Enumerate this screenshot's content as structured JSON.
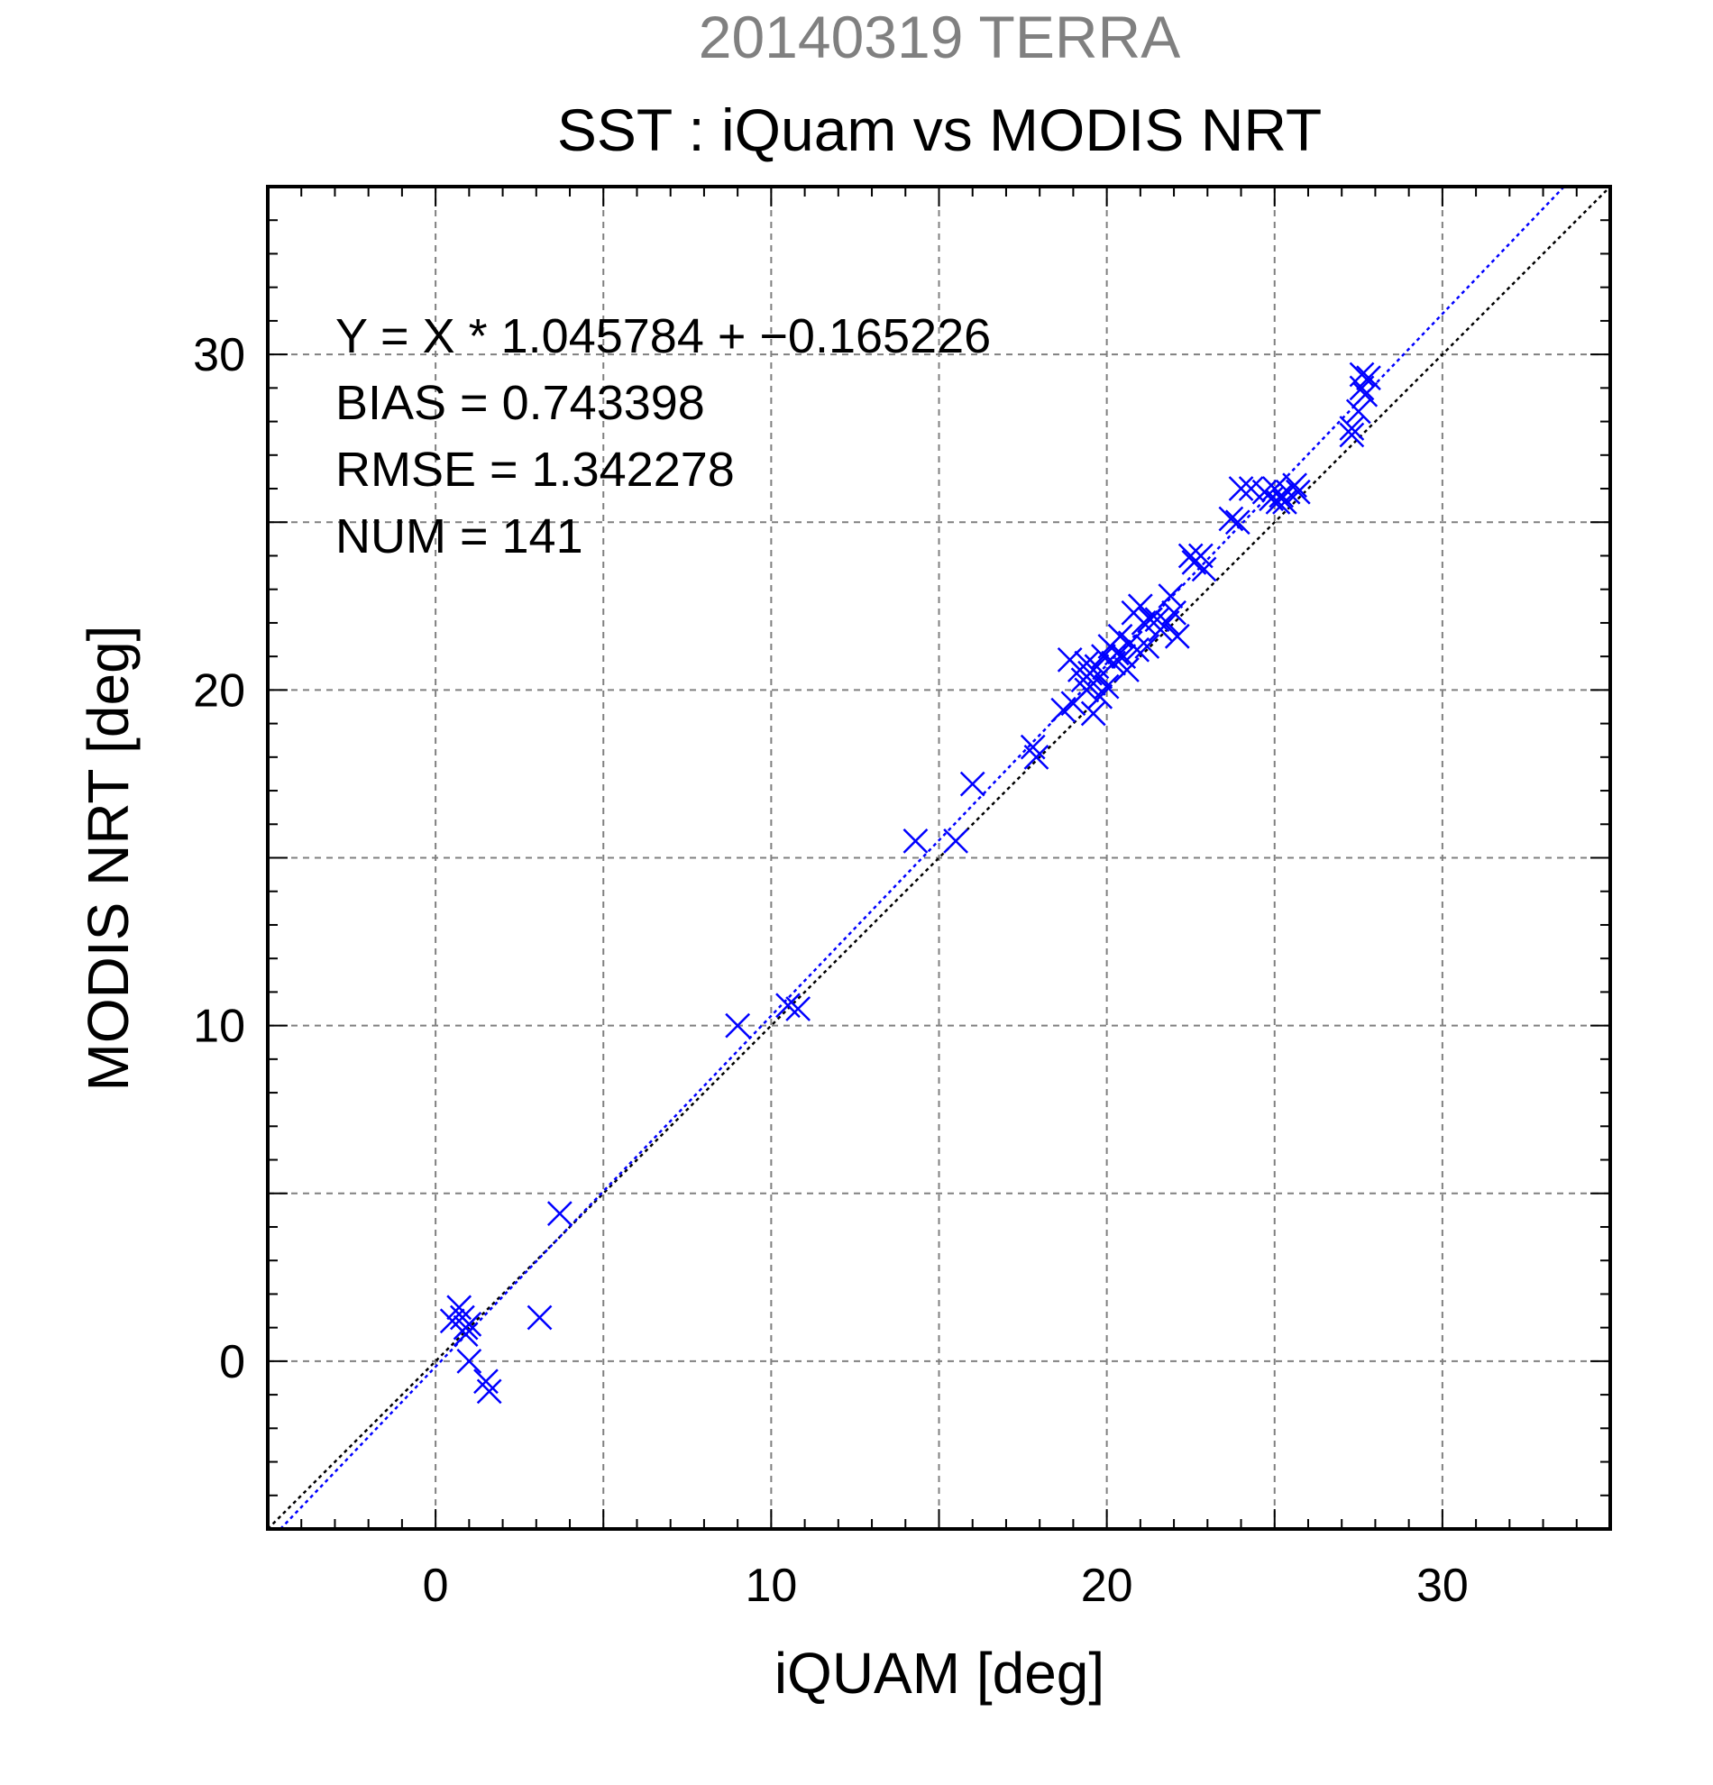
{
  "chart_data": {
    "type": "scatter",
    "subtitle": "20140319 TERRA",
    "title": "SST : iQuam vs MODIS NRT",
    "xlabel": "iQUAM [deg]",
    "ylabel": "MODIS NRT [deg]",
    "xlim": [
      -5,
      35
    ],
    "ylim": [
      -5,
      35
    ],
    "xticks": [
      0,
      10,
      20,
      30
    ],
    "yticks": [
      0,
      10,
      20,
      30
    ],
    "grid": true,
    "stats": [
      "Y = X * 1.045784 + −0.165226",
      "BIAS = 0.743398",
      "RMSE = 1.342278",
      "NUM = 141"
    ],
    "reference_line": {
      "name": "1:1",
      "slope": 1,
      "intercept": 0,
      "color": "#000000"
    },
    "fit_line": {
      "slope": 1.045784,
      "intercept": -0.165226,
      "color": "#0000ff"
    },
    "marker_color": "#0000ff",
    "points": [
      {
        "x": 0.5,
        "y": 1.2
      },
      {
        "x": 0.7,
        "y": 1.6
      },
      {
        "x": 0.8,
        "y": 1.3
      },
      {
        "x": 0.9,
        "y": 1.0
      },
      {
        "x": 0.9,
        "y": 0.8
      },
      {
        "x": 1.0,
        "y": 1.1
      },
      {
        "x": 1.0,
        "y": 0.0
      },
      {
        "x": 1.5,
        "y": -0.6
      },
      {
        "x": 1.6,
        "y": -0.9
      },
      {
        "x": 3.1,
        "y": 1.3
      },
      {
        "x": 3.7,
        "y": 4.4
      },
      {
        "x": 9.0,
        "y": 10.0
      },
      {
        "x": 10.5,
        "y": 10.6
      },
      {
        "x": 10.8,
        "y": 10.5
      },
      {
        "x": 14.3,
        "y": 15.5
      },
      {
        "x": 15.5,
        "y": 15.5
      },
      {
        "x": 16.0,
        "y": 17.2
      },
      {
        "x": 17.8,
        "y": 18.3
      },
      {
        "x": 17.9,
        "y": 18.0
      },
      {
        "x": 18.7,
        "y": 19.4
      },
      {
        "x": 18.9,
        "y": 20.9
      },
      {
        "x": 19.0,
        "y": 19.6
      },
      {
        "x": 19.2,
        "y": 20.6
      },
      {
        "x": 19.3,
        "y": 20.3
      },
      {
        "x": 19.4,
        "y": 20.8
      },
      {
        "x": 19.4,
        "y": 20.0
      },
      {
        "x": 19.5,
        "y": 20.5
      },
      {
        "x": 19.6,
        "y": 19.3
      },
      {
        "x": 19.6,
        "y": 20.2
      },
      {
        "x": 19.7,
        "y": 20.7
      },
      {
        "x": 19.8,
        "y": 19.8
      },
      {
        "x": 19.8,
        "y": 20.4
      },
      {
        "x": 19.9,
        "y": 21.0
      },
      {
        "x": 20.0,
        "y": 20.1
      },
      {
        "x": 20.1,
        "y": 21.3
      },
      {
        "x": 20.2,
        "y": 20.8
      },
      {
        "x": 20.3,
        "y": 21.1
      },
      {
        "x": 20.4,
        "y": 21.6
      },
      {
        "x": 20.5,
        "y": 21.0
      },
      {
        "x": 20.6,
        "y": 20.6
      },
      {
        "x": 20.7,
        "y": 21.4
      },
      {
        "x": 20.8,
        "y": 22.3
      },
      {
        "x": 20.9,
        "y": 21.2
      },
      {
        "x": 21.0,
        "y": 22.5
      },
      {
        "x": 21.1,
        "y": 22.0
      },
      {
        "x": 21.2,
        "y": 21.3
      },
      {
        "x": 21.3,
        "y": 22.1
      },
      {
        "x": 21.5,
        "y": 22.1
      },
      {
        "x": 21.6,
        "y": 21.8
      },
      {
        "x": 21.8,
        "y": 22.0
      },
      {
        "x": 21.9,
        "y": 22.8
      },
      {
        "x": 22.0,
        "y": 22.3
      },
      {
        "x": 22.1,
        "y": 21.6
      },
      {
        "x": 22.5,
        "y": 24.0
      },
      {
        "x": 22.6,
        "y": 23.8
      },
      {
        "x": 22.8,
        "y": 24.0
      },
      {
        "x": 22.9,
        "y": 23.6
      },
      {
        "x": 23.7,
        "y": 25.1
      },
      {
        "x": 23.9,
        "y": 25.0
      },
      {
        "x": 24.0,
        "y": 26.0
      },
      {
        "x": 24.3,
        "y": 26.0
      },
      {
        "x": 24.7,
        "y": 25.9
      },
      {
        "x": 24.9,
        "y": 25.7
      },
      {
        "x": 25.0,
        "y": 26.0
      },
      {
        "x": 25.1,
        "y": 25.6
      },
      {
        "x": 25.2,
        "y": 25.8
      },
      {
        "x": 25.3,
        "y": 25.6
      },
      {
        "x": 25.4,
        "y": 25.9
      },
      {
        "x": 25.6,
        "y": 26.1
      },
      {
        "x": 25.7,
        "y": 25.9
      },
      {
        "x": 27.3,
        "y": 27.8
      },
      {
        "x": 27.3,
        "y": 27.6
      },
      {
        "x": 27.5,
        "y": 28.3
      },
      {
        "x": 27.6,
        "y": 29.4
      },
      {
        "x": 27.7,
        "y": 28.8
      },
      {
        "x": 27.6,
        "y": 29.0
      },
      {
        "x": 27.8,
        "y": 29.3
      }
    ]
  }
}
